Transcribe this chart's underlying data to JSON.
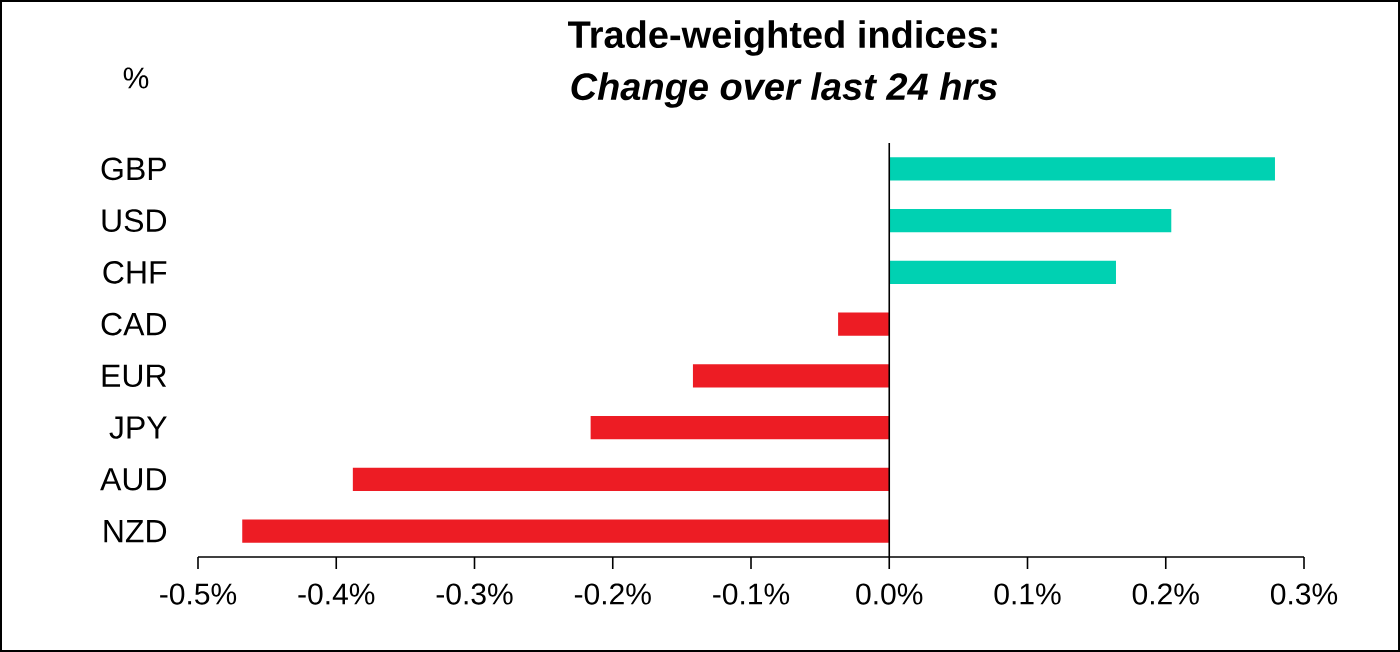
{
  "chart_data": {
    "type": "bar",
    "orientation": "horizontal",
    "title": "Trade-weighted indices:",
    "subtitle": "Change over last 24 hrs",
    "ylabel": "%",
    "categories": [
      "GBP",
      "USD",
      "CHF",
      "CAD",
      "EUR",
      "JPY",
      "AUD",
      "NZD"
    ],
    "values": [
      0.279,
      0.204,
      0.164,
      -0.037,
      -0.142,
      -0.216,
      -0.388,
      -0.468
    ],
    "colors": [
      "#00d1b2",
      "#00d1b2",
      "#00d1b2",
      "#ed1c24",
      "#ed1c24",
      "#ed1c24",
      "#ed1c24",
      "#ed1c24"
    ],
    "xlim": [
      -0.5,
      0.3
    ],
    "xticks": [
      {
        "value": -0.5,
        "label": "-0.5%"
      },
      {
        "value": -0.4,
        "label": "-0.4%"
      },
      {
        "value": -0.3,
        "label": "-0.3%"
      },
      {
        "value": -0.2,
        "label": "-0.2%"
      },
      {
        "value": -0.1,
        "label": "-0.1%"
      },
      {
        "value": 0,
        "label": "0.0%"
      },
      {
        "value": 0.1,
        "label": "0.1%"
      },
      {
        "value": 0.2,
        "label": "0.2%"
      },
      {
        "value": 0.3,
        "label": "0.3%"
      }
    ]
  }
}
